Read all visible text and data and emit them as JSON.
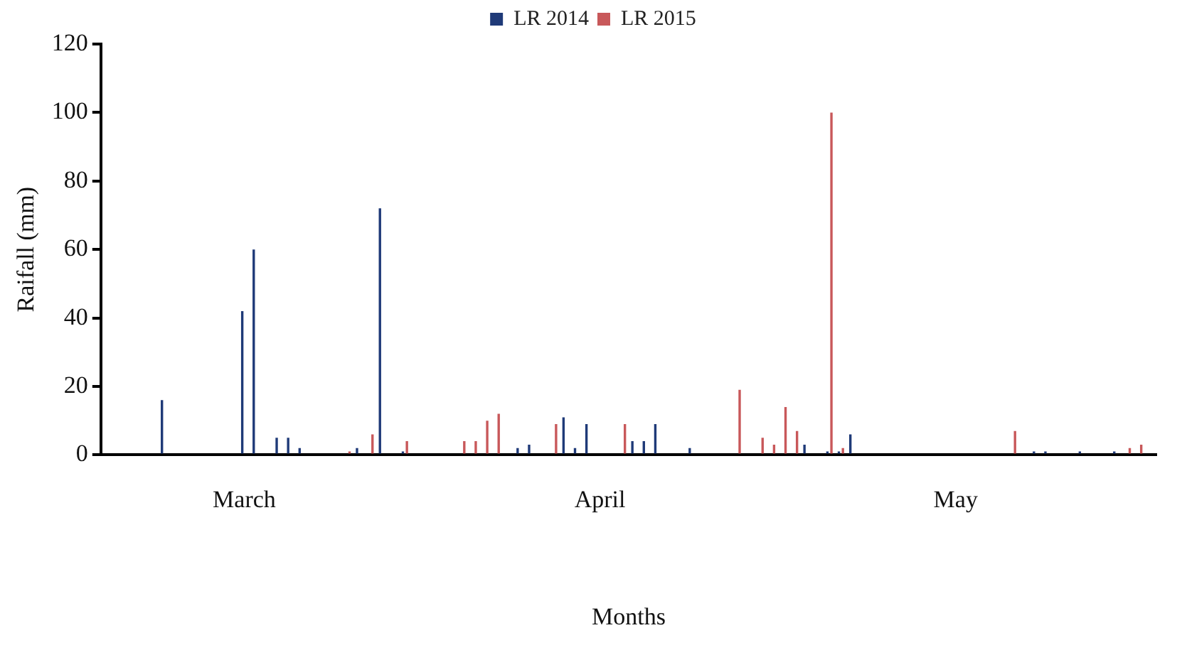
{
  "chart_data": {
    "type": "bar",
    "xlabel": "Months",
    "ylabel": "Raifall (mm)",
    "categories": [
      null,
      null,
      null,
      null,
      null,
      null,
      null,
      null,
      null,
      null,
      null,
      null,
      "March",
      null,
      null,
      null,
      null,
      null,
      null,
      null,
      null,
      null,
      null,
      null,
      null,
      null,
      null,
      null,
      null,
      null,
      null,
      null,
      null,
      null,
      null,
      null,
      null,
      null,
      null,
      null,
      null,
      null,
      null,
      "April",
      null,
      null,
      null,
      null,
      null,
      null,
      null,
      null,
      null,
      null,
      null,
      null,
      null,
      null,
      null,
      null,
      null,
      null,
      null,
      null,
      null,
      null,
      null,
      null,
      null,
      null,
      null,
      null,
      null,
      null,
      "May",
      null,
      null,
      null,
      null,
      null,
      null,
      null,
      null,
      null,
      null,
      null,
      null,
      null,
      null,
      null,
      null,
      null
    ],
    "series": [
      {
        "name": "LR 2014",
        "color": "#1f3a78",
        "values": [
          0,
          0,
          0,
          0,
          0,
          16,
          0,
          0,
          0,
          0,
          0,
          0,
          42,
          60,
          0,
          5,
          5,
          2,
          0,
          0,
          0,
          0,
          2,
          0,
          72,
          0,
          1,
          0,
          0,
          0,
          0,
          0,
          0,
          0,
          0,
          0,
          2,
          3,
          0,
          0,
          11,
          2,
          9,
          0,
          0,
          0,
          4,
          4,
          9,
          0,
          0,
          2,
          0,
          0,
          0,
          0,
          0,
          0,
          0,
          0,
          0,
          3,
          0,
          1,
          1,
          6,
          0,
          0,
          0,
          0,
          0,
          0,
          0,
          0,
          0,
          0,
          0,
          0,
          0,
          0,
          0,
          1,
          1,
          0,
          0,
          1,
          0,
          0,
          1,
          0,
          0,
          0
        ]
      },
      {
        "name": "LR 2015",
        "color": "#c8585a",
        "values": [
          0,
          0,
          0,
          0,
          0,
          0,
          0,
          0,
          0,
          0,
          0,
          0,
          0,
          0,
          0,
          0,
          0,
          0,
          0,
          0,
          0,
          1,
          0,
          6,
          0,
          0,
          4,
          0,
          0,
          0,
          0,
          4,
          4,
          10,
          12,
          0,
          0,
          0,
          0,
          9,
          0,
          0,
          0,
          0,
          0,
          9,
          0,
          0,
          0,
          0,
          0,
          0,
          0,
          0,
          0,
          19,
          0,
          5,
          3,
          14,
          7,
          0,
          0,
          100,
          2,
          0,
          0,
          0,
          0,
          0,
          0,
          0,
          0,
          0,
          0,
          0,
          0,
          0,
          0,
          7,
          0,
          0,
          0,
          0,
          0,
          0,
          0,
          0,
          0,
          2,
          3,
          0
        ]
      }
    ],
    "ylim": [
      0,
      120
    ],
    "yticks": [
      0,
      20,
      40,
      60,
      80,
      100,
      120
    ],
    "legend": "top"
  }
}
